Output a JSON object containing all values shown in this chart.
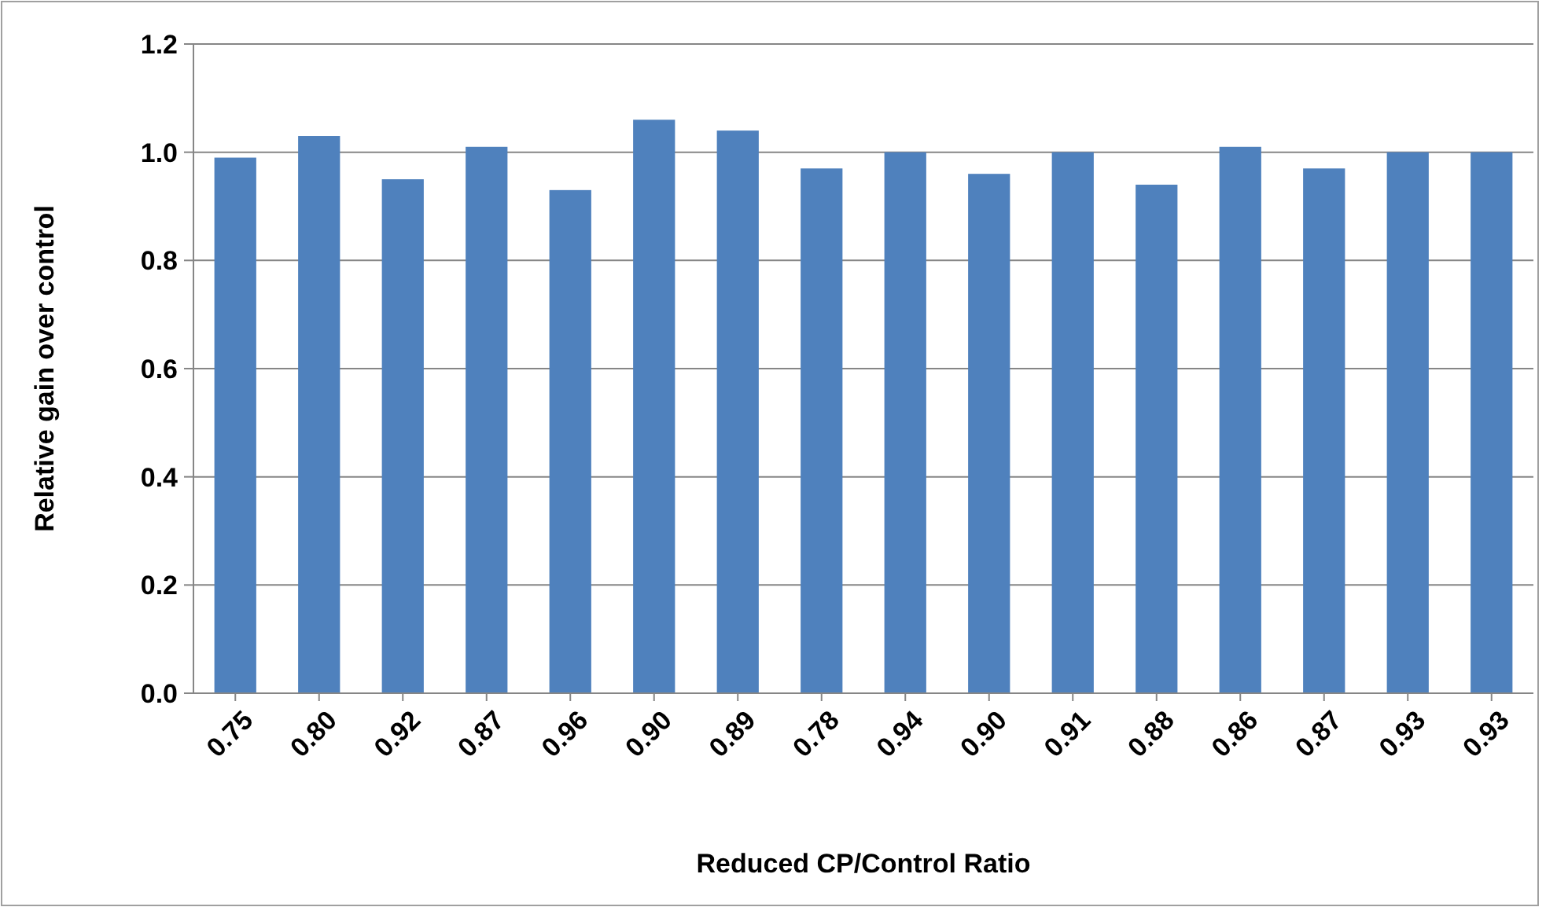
{
  "chart_data": {
    "type": "bar",
    "xlabel": "Reduced CP/Control Ratio",
    "ylabel": "Relative gain over control",
    "categories": [
      "0.75",
      "0.80",
      "0.92",
      "0.87",
      "0.96",
      "0.90",
      "0.89",
      "0.78",
      "0.94",
      "0.90",
      "0.91",
      "0.88",
      "0.86",
      "0.87",
      "0.93",
      "0.93"
    ],
    "values": [
      0.99,
      1.03,
      0.95,
      1.01,
      0.93,
      1.06,
      1.04,
      0.97,
      1.0,
      0.96,
      1.0,
      0.94,
      1.01,
      0.97,
      1.0,
      1.0
    ],
    "color": "#4f81bd",
    "ylim": [
      0,
      1.2
    ],
    "yticks": [
      {
        "value": 0,
        "label": "0.0"
      },
      {
        "value": 0.2,
        "label": "0.2"
      },
      {
        "value": 0.4,
        "label": "0.4"
      },
      {
        "value": 0.6,
        "label": "0.6"
      },
      {
        "value": 0.8,
        "label": "0.8"
      },
      {
        "value": 1,
        "label": "1.0"
      },
      {
        "value": 1.2,
        "label": "1.2"
      }
    ],
    "grid": "y"
  }
}
